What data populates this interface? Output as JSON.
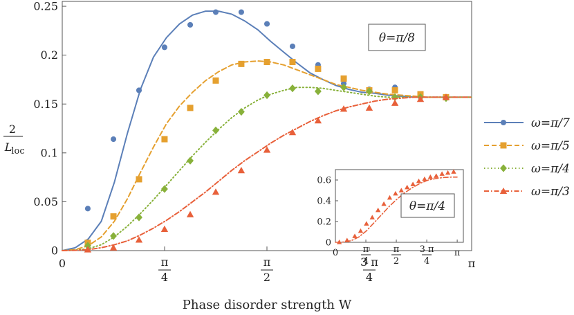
{
  "chart_data": [
    {
      "type": "line",
      "xlabel": "Phase disorder strength W",
      "ylabel_num": "2",
      "ylabel_den": "L",
      "ylabel_sub": "loc",
      "xlim": [
        0,
        3.1416
      ],
      "ylim": [
        0,
        0.255
      ],
      "x_ticks": [
        {
          "value": 0,
          "num": "0",
          "den": ""
        },
        {
          "value": 0.7854,
          "num": "π",
          "den": "4"
        },
        {
          "value": 1.5708,
          "num": "π",
          "den": "2"
        },
        {
          "value": 2.3562,
          "num": "3 π",
          "den": "4"
        },
        {
          "value": 3.1416,
          "num": "π",
          "den": ""
        }
      ],
      "y_ticks": [
        {
          "value": 0,
          "label": "0"
        },
        {
          "value": 0.05,
          "label": "0.05"
        },
        {
          "value": 0.1,
          "label": "0.1"
        },
        {
          "value": 0.15,
          "label": "0.15"
        },
        {
          "value": 0.2,
          "label": "0.2"
        },
        {
          "value": 0.25,
          "label": "0.25"
        }
      ],
      "annotation": "θ=π/8",
      "legend_position": "right",
      "series": [
        {
          "name": "ω=π/7",
          "color": "#5b7fb8",
          "line_style": "solid",
          "marker": "circle",
          "curve_x": [
            0,
            0.1,
            0.2,
            0.3,
            0.4,
            0.5,
            0.6,
            0.7,
            0.8,
            0.9,
            1.0,
            1.1,
            1.2,
            1.3,
            1.4,
            1.5,
            1.6,
            1.7,
            1.8,
            1.9,
            2.0,
            2.1,
            2.2,
            2.3,
            2.4,
            2.5,
            2.6,
            2.7,
            2.8,
            2.9,
            3.0,
            3.1,
            3.14
          ],
          "curve_y": [
            0,
            0.003,
            0.012,
            0.03,
            0.07,
            0.12,
            0.165,
            0.198,
            0.218,
            0.232,
            0.241,
            0.245,
            0.245,
            0.242,
            0.235,
            0.226,
            0.214,
            0.203,
            0.192,
            0.182,
            0.175,
            0.169,
            0.165,
            0.162,
            0.161,
            0.159,
            0.158,
            0.157,
            0.157,
            0.157,
            0.157,
            0.157,
            0.157
          ],
          "points_x": [
            0.196,
            0.393,
            0.589,
            0.785,
            0.982,
            1.178,
            1.374,
            1.571,
            1.767,
            1.963,
            2.16,
            2.356,
            2.553,
            2.749,
            2.945
          ],
          "points_y": [
            0.043,
            0.114,
            0.164,
            0.208,
            0.231,
            0.244,
            0.244,
            0.232,
            0.209,
            0.19,
            0.171,
            0.165,
            0.167,
            0.16,
            0.157
          ]
        },
        {
          "name": "ω=π/5",
          "color": "#e5a02f",
          "line_style": "dashed",
          "marker": "square",
          "curve_x": [
            0,
            0.1,
            0.2,
            0.3,
            0.4,
            0.5,
            0.6,
            0.7,
            0.8,
            0.9,
            1.0,
            1.1,
            1.2,
            1.3,
            1.4,
            1.5,
            1.6,
            1.7,
            1.8,
            1.9,
            2.0,
            2.1,
            2.2,
            2.3,
            2.4,
            2.5,
            2.6,
            2.7,
            2.8,
            2.9,
            3.0,
            3.1,
            3.14
          ],
          "curve_y": [
            0,
            0.001,
            0.005,
            0.014,
            0.03,
            0.053,
            0.08,
            0.106,
            0.13,
            0.148,
            0.162,
            0.174,
            0.183,
            0.19,
            0.193,
            0.194,
            0.193,
            0.19,
            0.185,
            0.18,
            0.175,
            0.17,
            0.167,
            0.164,
            0.162,
            0.16,
            0.159,
            0.158,
            0.157,
            0.157,
            0.157,
            0.157,
            0.157
          ],
          "points_x": [
            0.196,
            0.393,
            0.589,
            0.785,
            0.982,
            1.178,
            1.374,
            1.571,
            1.767,
            1.963,
            2.16,
            2.356,
            2.553,
            2.749,
            2.945
          ],
          "points_y": [
            0.008,
            0.035,
            0.073,
            0.114,
            0.146,
            0.174,
            0.191,
            0.193,
            0.193,
            0.186,
            0.176,
            0.164,
            0.164,
            0.16,
            0.157
          ]
        },
        {
          "name": "ω=π/4",
          "color": "#88b13a",
          "line_style": "dotted",
          "marker": "diamond",
          "curve_x": [
            0,
            0.1,
            0.2,
            0.3,
            0.4,
            0.5,
            0.6,
            0.7,
            0.8,
            0.9,
            1.0,
            1.1,
            1.2,
            1.3,
            1.4,
            1.5,
            1.6,
            1.7,
            1.8,
            1.9,
            2.0,
            2.1,
            2.2,
            2.3,
            2.4,
            2.5,
            2.6,
            2.7,
            2.8,
            2.9,
            3.0,
            3.1,
            3.14
          ],
          "curve_y": [
            0,
            0.0005,
            0.002,
            0.006,
            0.014,
            0.025,
            0.038,
            0.052,
            0.067,
            0.082,
            0.097,
            0.111,
            0.124,
            0.136,
            0.146,
            0.154,
            0.16,
            0.164,
            0.167,
            0.167,
            0.166,
            0.164,
            0.162,
            0.16,
            0.158,
            0.157,
            0.157,
            0.157,
            0.157,
            0.157,
            0.157,
            0.157,
            0.157
          ],
          "points_x": [
            0.196,
            0.393,
            0.589,
            0.785,
            0.982,
            1.178,
            1.374,
            1.571,
            1.767,
            1.963,
            2.16,
            2.356,
            2.553,
            2.749,
            2.945
          ],
          "points_y": [
            0.005,
            0.015,
            0.034,
            0.063,
            0.092,
            0.123,
            0.142,
            0.159,
            0.166,
            0.163,
            0.167,
            0.163,
            0.157,
            0.157,
            0.156
          ]
        },
        {
          "name": "ω=π/3",
          "color": "#e8603a",
          "line_style": "dashdot",
          "marker": "triangle",
          "curve_x": [
            0,
            0.1,
            0.2,
            0.3,
            0.4,
            0.5,
            0.6,
            0.7,
            0.8,
            0.9,
            1.0,
            1.1,
            1.2,
            1.3,
            1.4,
            1.5,
            1.6,
            1.7,
            1.8,
            1.9,
            2.0,
            2.1,
            2.2,
            2.3,
            2.4,
            2.5,
            2.6,
            2.7,
            2.8,
            2.9,
            3.0,
            3.1,
            3.14
          ],
          "curve_y": [
            0,
            0.0003,
            0.001,
            0.003,
            0.006,
            0.01,
            0.016,
            0.023,
            0.031,
            0.04,
            0.05,
            0.06,
            0.071,
            0.082,
            0.092,
            0.101,
            0.11,
            0.118,
            0.125,
            0.132,
            0.138,
            0.143,
            0.147,
            0.15,
            0.153,
            0.155,
            0.156,
            0.157,
            0.157,
            0.157,
            0.157,
            0.157,
            0.157
          ],
          "points_x": [
            0.196,
            0.393,
            0.589,
            0.785,
            0.982,
            1.178,
            1.374,
            1.571,
            1.767,
            1.963,
            2.16,
            2.356,
            2.553,
            2.749,
            2.945
          ],
          "points_y": [
            0.001,
            0.003,
            0.011,
            0.022,
            0.037,
            0.06,
            0.082,
            0.103,
            0.121,
            0.133,
            0.145,
            0.146,
            0.151,
            0.155,
            0.157
          ]
        }
      ]
    },
    {
      "type": "line",
      "annotation": "θ=π/4",
      "xlim": [
        0,
        3.3
      ],
      "ylim": [
        0,
        0.7
      ],
      "x_ticks": [
        {
          "value": 0,
          "num": "0",
          "den": ""
        },
        {
          "value": 0.7854,
          "num": "π",
          "den": "4"
        },
        {
          "value": 1.5708,
          "num": "π",
          "den": "2"
        },
        {
          "value": 2.3562,
          "num": "3 π",
          "den": "4"
        },
        {
          "value": 3.1416,
          "num": "π",
          "den": ""
        }
      ],
      "y_ticks": [
        {
          "value": 0,
          "label": "0"
        },
        {
          "value": 0.2,
          "label": "0.2"
        },
        {
          "value": 0.4,
          "label": "0.4"
        },
        {
          "value": 0.6,
          "label": "0.6"
        }
      ],
      "series": [
        {
          "name": "ω=π/3",
          "color": "#e8603a",
          "line_style": "dashdot",
          "marker": "triangle",
          "curve_x": [
            0,
            0.2,
            0.4,
            0.6,
            0.8,
            1.0,
            1.2,
            1.4,
            1.6,
            1.8,
            2.0,
            2.2,
            2.4,
            2.6,
            2.8,
            3.0,
            3.14
          ],
          "curve_y": [
            0,
            0.003,
            0.015,
            0.05,
            0.11,
            0.19,
            0.27,
            0.35,
            0.42,
            0.48,
            0.53,
            0.57,
            0.6,
            0.615,
            0.625,
            0.628,
            0.628
          ],
          "points_x": [
            0.1,
            0.3,
            0.5,
            0.65,
            0.8,
            0.95,
            1.1,
            1.25,
            1.4,
            1.55,
            1.7,
            1.85,
            2.0,
            2.15,
            2.3,
            2.45,
            2.6,
            2.75,
            2.9,
            3.05
          ],
          "points_y": [
            0.002,
            0.02,
            0.06,
            0.11,
            0.18,
            0.24,
            0.31,
            0.37,
            0.43,
            0.47,
            0.5,
            0.53,
            0.56,
            0.59,
            0.61,
            0.63,
            0.64,
            0.66,
            0.67,
            0.68
          ]
        }
      ]
    }
  ]
}
